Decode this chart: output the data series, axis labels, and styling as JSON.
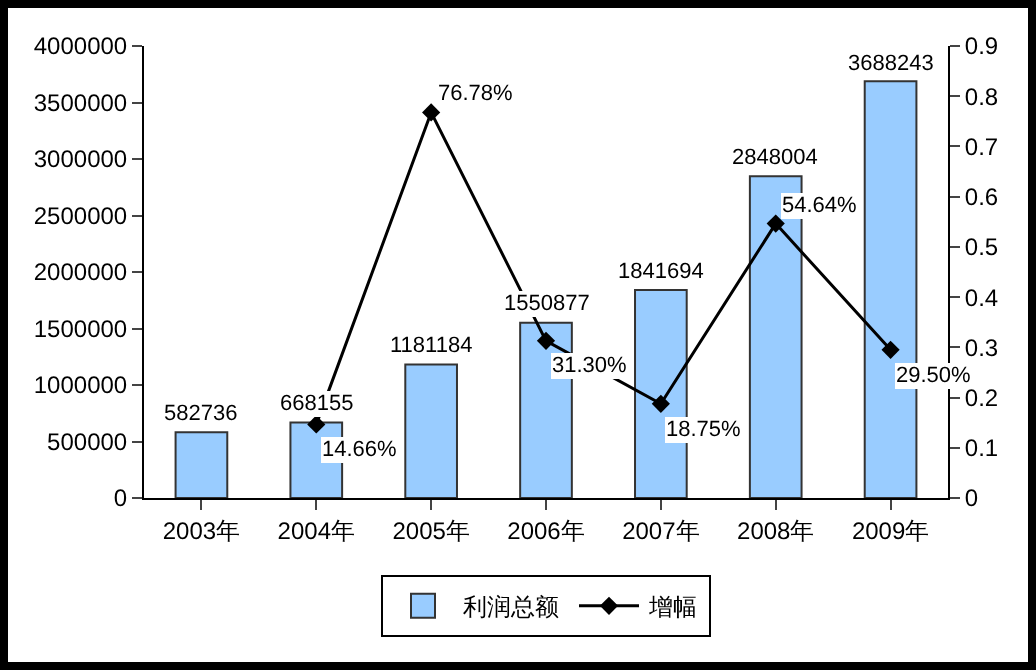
{
  "chart_data": {
    "type": "bar",
    "categories": [
      "2003年",
      "2004年",
      "2005年",
      "2006年",
      "2007年",
      "2008年",
      "2009年"
    ],
    "series": [
      {
        "name": "利润总额",
        "color": "#99ccff",
        "values": [
          582736,
          668155,
          1181184,
          1550877,
          1841694,
          2848004,
          3688243
        ]
      },
      {
        "name": "增幅",
        "type": "line",
        "axis": "y2",
        "color": "#000000",
        "marker": "diamond",
        "values": [
          null,
          0.1466,
          0.7678,
          0.313,
          0.1875,
          0.5464,
          0.295
        ],
        "value_labels": [
          null,
          "14.66%",
          "76.78%",
          "31.30%",
          "18.75%",
          "54.64%",
          "29.50%"
        ]
      }
    ],
    "data_labels": true,
    "ylim": [
      0,
      4000000
    ],
    "yticks": [
      0,
      500000,
      1000000,
      1500000,
      2000000,
      2500000,
      3000000,
      3500000,
      4000000
    ],
    "y2lim": [
      0,
      0.9
    ],
    "y2ticks": [
      0,
      0.1,
      0.2,
      0.3,
      0.4,
      0.5,
      0.6,
      0.7,
      0.8,
      0.9
    ],
    "grid": false,
    "legend": "bottom"
  }
}
